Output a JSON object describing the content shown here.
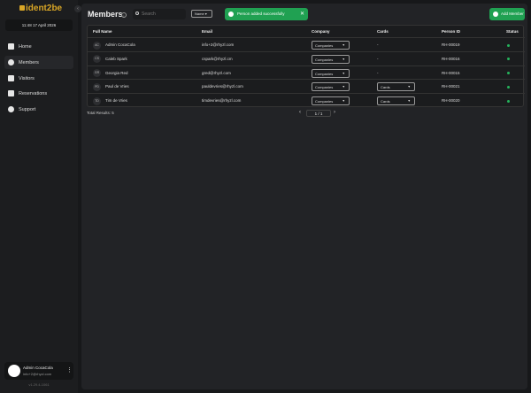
{
  "sidebar": {
    "logo": "ident2be",
    "datetime": "11:48   17 April 2026",
    "items": [
      {
        "label": "Home",
        "icon": "home-icon"
      },
      {
        "label": "Members",
        "icon": "user-icon",
        "active": true
      },
      {
        "label": "Visitors",
        "icon": "badge-icon"
      },
      {
        "label": "Reservations",
        "icon": "calendar-icon"
      },
      {
        "label": "Support",
        "icon": "help-icon"
      }
    ],
    "user": {
      "name": "Admin CocaCola",
      "email": "info+2@rhyzl.com"
    },
    "version": "v1.29.4-1061"
  },
  "header": {
    "title": "Members",
    "search_placeholder": "Search",
    "sort_select": "Name",
    "add_button": "Add Member"
  },
  "toast": {
    "message": "Person added successfully",
    "color": "#20a152"
  },
  "table": {
    "columns": [
      "Full Name",
      "Email",
      "Company",
      "Cards",
      "Person ID",
      "Status"
    ],
    "rows": [
      {
        "initials": "AC",
        "name": "Admin CocaCola",
        "email": "info+2@rhyzl.com",
        "company": "Companies",
        "cards": "-",
        "id": "RH-00019",
        "status": "active"
      },
      {
        "initials": "CS",
        "name": "Caleb Spark",
        "email": "cspark@rhyzl.cm",
        "company": "Companies",
        "cards": "-",
        "id": "RH-00016",
        "status": "active"
      },
      {
        "initials": "GR",
        "name": "Georgia Red",
        "email": "gred@rhyzl.com",
        "company": "Companies",
        "cards": "-",
        "id": "RH-00015",
        "status": "active"
      },
      {
        "initials": "PD",
        "name": "Paul de Vries",
        "email": "pauldevries@rhyzl.com",
        "company": "Companies",
        "cards": "Cards",
        "id": "RH-00021",
        "status": "active"
      },
      {
        "initials": "TD",
        "name": "Tim de Vries",
        "email": "timdevries@rhyzl.com",
        "company": "Companies",
        "cards": "Cards",
        "id": "RH-00020",
        "status": "active"
      }
    ]
  },
  "footer": {
    "total_label": "Total Results: 5",
    "page": "1",
    "pages": "/ 1",
    "prev": "‹",
    "next": "›"
  },
  "status_color": "#25b35c"
}
